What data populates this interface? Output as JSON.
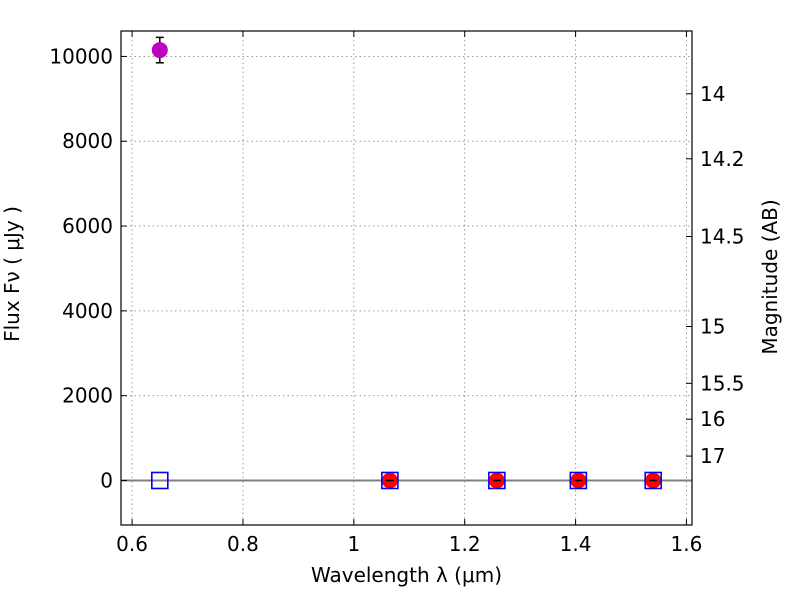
{
  "chart_data": {
    "type": "scatter",
    "xlabel": "Wavelength  λ (μm)",
    "ylabel": "Flux  Fν  ( μJy )",
    "ylabel_right": "Magnitude (AB)",
    "xlim": [
      0.58,
      1.61
    ],
    "ylim": [
      -1050,
      10600
    ],
    "grid": true,
    "x_ticks": [
      0.6,
      0.8,
      1.0,
      1.2,
      1.4,
      1.6
    ],
    "x_tick_labels": [
      "0.6",
      "0.8",
      "1",
      "1.2",
      "1.4",
      "1.6"
    ],
    "y_ticks": [
      0,
      2000,
      4000,
      6000,
      8000,
      10000
    ],
    "y_tick_labels": [
      "0",
      "2000",
      "4000",
      "6000",
      "8000",
      "10000"
    ],
    "right_ticks": [
      {
        "label": "14",
        "flux": 9120
      },
      {
        "label": "14.2",
        "flux": 7586
      },
      {
        "label": "14.5",
        "flux": 5754
      },
      {
        "label": "15",
        "flux": 3631
      },
      {
        "label": "15.5",
        "flux": 2291
      },
      {
        "label": "16",
        "flux": 1445
      },
      {
        "label": "17",
        "flux": 575
      }
    ],
    "zero_line": 0,
    "series": [
      {
        "name": "magenta-point",
        "marker": "circle",
        "color": "#bf00bf",
        "points": [
          {
            "x": 0.65,
            "y": 10150,
            "yerr": 300
          }
        ]
      },
      {
        "name": "red-points",
        "marker": "circle",
        "color": "#ff0000",
        "points": [
          {
            "x": 1.065,
            "y": 0,
            "yerr": 0
          },
          {
            "x": 1.258,
            "y": 0,
            "yerr": 0
          },
          {
            "x": 1.405,
            "y": 0,
            "yerr": 0
          },
          {
            "x": 1.54,
            "y": 0,
            "yerr": 0
          }
        ]
      },
      {
        "name": "blue-squares",
        "marker": "square-open",
        "color": "#0000ff",
        "points": [
          {
            "x": 0.65,
            "y": 0
          },
          {
            "x": 1.065,
            "y": 0
          },
          {
            "x": 1.258,
            "y": 0
          },
          {
            "x": 1.405,
            "y": 0
          },
          {
            "x": 1.54,
            "y": 0
          }
        ]
      }
    ]
  }
}
